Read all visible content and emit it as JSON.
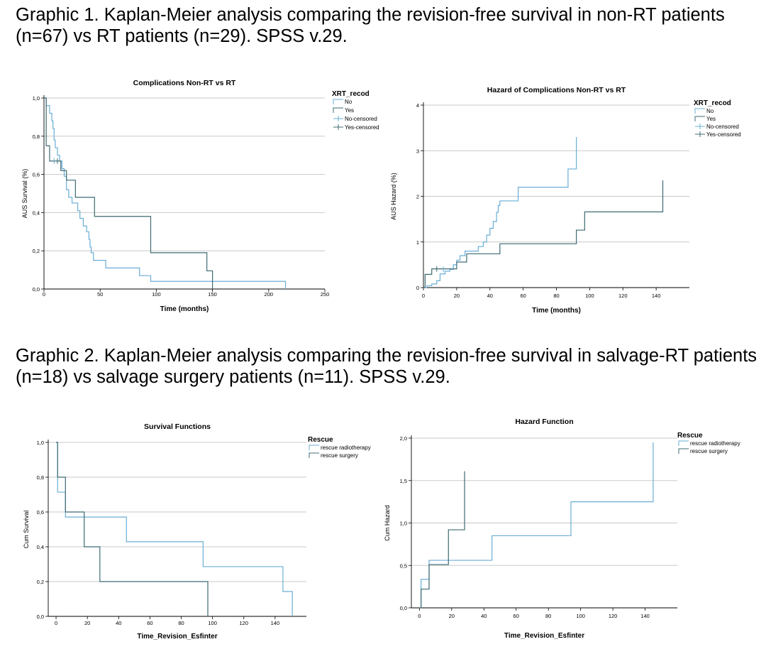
{
  "captions": {
    "graphic1": "Graphic 1. Kaplan-Meier analysis comparing the revision-free survival in non-RT patients (n=67) vs RT patients (n=29). SPSS v.29.",
    "graphic2": "Graphic 2. Kaplan-Meier analysis comparing the revision-free survival in salvage-RT patients (n=18) vs salvage surgery patients (n=11). SPSS v.29."
  },
  "chart_data": [
    {
      "type": "line",
      "step": true,
      "title": "Complications Non-RT vs RT",
      "xlabel": "Time (months)",
      "ylabel": "AUS Survival (%)",
      "xlim": [
        0,
        250
      ],
      "ylim": [
        0,
        1.0
      ],
      "xticks": [
        0,
        50,
        100,
        150,
        200,
        250
      ],
      "yticks": [
        0,
        0.2,
        0.4,
        0.6,
        0.8,
        1.0
      ],
      "xtick_labels": [
        "0",
        "50",
        "100",
        "150",
        "200",
        "250"
      ],
      "ytick_labels": [
        "0,0",
        "0,2",
        "0,4",
        "0,6",
        "0,8",
        "1,0"
      ],
      "grid": "horizontal",
      "legend": {
        "title": "XRT_recod",
        "position": "right",
        "entries": [
          "No",
          "Yes",
          "No-censored",
          "Yes-censored"
        ]
      },
      "series": [
        {
          "name": "No",
          "color": "#6aaed6",
          "x": [
            0,
            2,
            5,
            7,
            8,
            9,
            10,
            12,
            14,
            16,
            18,
            20,
            22,
            25,
            28,
            30,
            32,
            35,
            38,
            40,
            41,
            42,
            44,
            46,
            55,
            60,
            75,
            85,
            90,
            95,
            120,
            150,
            180,
            215
          ],
          "y": [
            1.0,
            0.96,
            0.92,
            0.88,
            0.84,
            0.78,
            0.74,
            0.7,
            0.67,
            0.63,
            0.59,
            0.52,
            0.48,
            0.45,
            0.45,
            0.41,
            0.37,
            0.33,
            0.3,
            0.26,
            0.22,
            0.19,
            0.15,
            0.15,
            0.11,
            0.11,
            0.11,
            0.07,
            0.07,
            0.04,
            0.04,
            0.04,
            0.04,
            0.0
          ]
        },
        {
          "name": "Yes",
          "color": "#3d6b73",
          "x": [
            0,
            2,
            5,
            10,
            15,
            20,
            28,
            45,
            95,
            100,
            145,
            150
          ],
          "y": [
            1.0,
            0.75,
            0.67,
            0.67,
            0.62,
            0.57,
            0.48,
            0.38,
            0.19,
            0.19,
            0.095,
            0.0
          ]
        }
      ],
      "censored": {
        "No": {
          "x": [
            9
          ],
          "y": [
            0.67
          ]
        },
        "Yes": {
          "x": [
            12
          ],
          "y": [
            0.67
          ]
        }
      }
    },
    {
      "type": "line",
      "step": true,
      "title": "Hazard of Complications Non-RT vs RT",
      "xlabel": "Time (months)",
      "ylabel": "AUS Hazard (%)",
      "xlim": [
        0,
        160
      ],
      "ylim": [
        0,
        4
      ],
      "xticks": [
        0,
        20,
        40,
        60,
        80,
        100,
        120,
        140
      ],
      "yticks": [
        0,
        1,
        2,
        3,
        4
      ],
      "xtick_labels": [
        "0",
        "20",
        "40",
        "60",
        "80",
        "100",
        "120",
        "140"
      ],
      "ytick_labels": [
        "0",
        "1",
        "2",
        "3",
        "4"
      ],
      "grid": "horizontal",
      "legend": {
        "title": "XRT_recod",
        "position": "right",
        "entries": [
          "No",
          "Yes",
          "No-censored",
          "Yes-censored"
        ]
      },
      "series": [
        {
          "name": "No",
          "color": "#6aaed6",
          "x": [
            0,
            2,
            5,
            8,
            10,
            13,
            16,
            18,
            20,
            22,
            25,
            33,
            36,
            38,
            40,
            42,
            44,
            45,
            46,
            47,
            57,
            87,
            92
          ],
          "y": [
            0.0,
            0.04,
            0.08,
            0.15,
            0.3,
            0.36,
            0.4,
            0.5,
            0.6,
            0.7,
            0.8,
            0.9,
            1.0,
            1.15,
            1.3,
            1.45,
            1.65,
            1.8,
            1.9,
            1.9,
            2.2,
            2.6,
            3.3
          ]
        },
        {
          "name": "Yes",
          "color": "#3d6b73",
          "x": [
            0,
            1,
            5,
            11,
            20,
            26,
            46,
            92,
            97,
            144
          ],
          "y": [
            0.0,
            0.29,
            0.41,
            0.41,
            0.56,
            0.74,
            0.96,
            1.26,
            1.66,
            2.35
          ]
        }
      ],
      "censored": {
        "No": {
          "x": [
            12
          ],
          "y": [
            0.4
          ]
        },
        "Yes": {
          "x": [
            8
          ],
          "y": [
            0.41
          ]
        }
      }
    },
    {
      "type": "line",
      "step": true,
      "title": "Survival Functions",
      "xlabel": "Time_Revision_Esfinter",
      "ylabel": "Cum Survival",
      "xlim": [
        -5,
        160
      ],
      "ylim": [
        0,
        1.0
      ],
      "xticks": [
        0,
        20,
        40,
        60,
        80,
        100,
        120,
        140
      ],
      "yticks": [
        0,
        0.2,
        0.4,
        0.6,
        0.8,
        1.0
      ],
      "xtick_labels": [
        "0",
        "20",
        "40",
        "60",
        "80",
        "100",
        "120",
        "140"
      ],
      "ytick_labels": [
        "0,0",
        "0,2",
        "0,4",
        "0,6",
        "0,8",
        "1,0"
      ],
      "grid": "horizontal",
      "legend": {
        "title": "Rescue",
        "position": "right",
        "entries": [
          "rescue radiotherapy",
          "rescue surgery"
        ]
      },
      "series": [
        {
          "name": "rescue radiotherapy",
          "color": "#6aaed6",
          "x": [
            0,
            1,
            6,
            8,
            45,
            94,
            145,
            151
          ],
          "y": [
            1.0,
            0.714,
            0.571,
            0.571,
            0.429,
            0.286,
            0.143,
            0.0
          ]
        },
        {
          "name": "rescue surgery",
          "color": "#3d6b73",
          "x": [
            0,
            1,
            6,
            18,
            28,
            97
          ],
          "y": [
            1.0,
            0.8,
            0.6,
            0.4,
            0.2,
            0.0
          ]
        }
      ]
    },
    {
      "type": "line",
      "step": true,
      "title": "Hazard Function",
      "xlabel": "Time_Revision_Esfinter",
      "ylabel": "Cum Hazard",
      "xlim": [
        -5,
        160
      ],
      "ylim": [
        0,
        2.0
      ],
      "xticks": [
        0,
        20,
        40,
        60,
        80,
        100,
        120,
        140
      ],
      "yticks": [
        0,
        0.5,
        1.0,
        1.5,
        2.0
      ],
      "xtick_labels": [
        "0",
        "20",
        "40",
        "60",
        "80",
        "100",
        "120",
        "140"
      ],
      "ytick_labels": [
        "0,0",
        "0,5",
        "1,0",
        "1,5",
        "2,0"
      ],
      "grid": "horizontal",
      "legend": {
        "title": "Rescue",
        "position": "right",
        "entries": [
          "rescue radiotherapy",
          "rescue surgery"
        ]
      },
      "series": [
        {
          "name": "rescue radiotherapy",
          "color": "#6aaed6",
          "x": [
            0,
            1,
            6,
            45,
            94,
            145
          ],
          "y": [
            0.0,
            0.336,
            0.56,
            0.85,
            1.25,
            1.95
          ]
        },
        {
          "name": "rescue surgery",
          "color": "#3d6b73",
          "x": [
            0,
            1,
            6,
            18,
            28
          ],
          "y": [
            0.0,
            0.22,
            0.51,
            0.92,
            1.61
          ]
        }
      ]
    }
  ]
}
